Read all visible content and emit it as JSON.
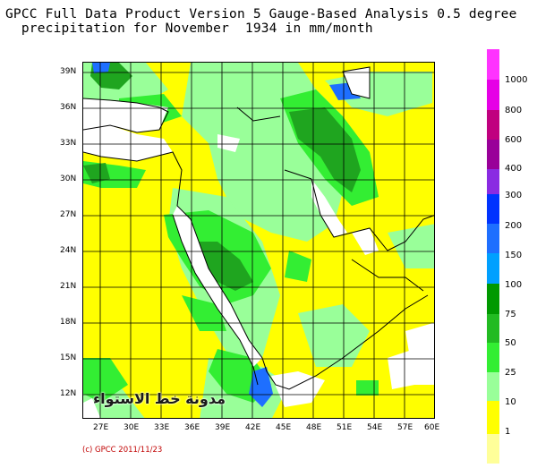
{
  "title": {
    "line1": "GPCC Full Data Product Version 5 Gauge-Based Analysis 0.5 degree",
    "line2": "  precipitation for November  1934 in mm/month"
  },
  "y_ticks": [
    "39N",
    "36N",
    "33N",
    "30N",
    "27N",
    "24N",
    "21N",
    "18N",
    "15N",
    "12N"
  ],
  "x_ticks": [
    "27E",
    "30E",
    "33E",
    "36E",
    "39E",
    "42E",
    "45E",
    "48E",
    "51E",
    "54E",
    "57E",
    "60E"
  ],
  "copyright": "(c) GPCC 2011/11/23",
  "watermark": "مدونة خط الاستواء",
  "legend": {
    "labels": [
      "1000",
      "800",
      "600",
      "400",
      "300",
      "200",
      "150",
      "100",
      "75",
      "50",
      "25",
      "10",
      "1"
    ],
    "colors": [
      "#ff33ff",
      "#e600e6",
      "#c0007f",
      "#990099",
      "#8a2be2",
      "#0033ff",
      "#1e6fff",
      "#00a0ff",
      "#009900",
      "#22bb22",
      "#33ee33",
      "#99ff99",
      "#ffff00",
      "#ffff99"
    ]
  },
  "chart_data": {
    "type": "heatmap",
    "title": "GPCC Full Data Product Version 5 Gauge-Based Analysis 0.5 degree precipitation for November 1934 in mm/month",
    "x_range_deg_E": [
      25,
      60
    ],
    "y_range_deg_N": [
      10,
      40
    ],
    "units": "mm/month",
    "colors": {
      "1-10": "#ffff00",
      "10-25": "#99ff99",
      "25-50": "#33ee33",
      "50-75": "#22bb22",
      "75-100": "#009900",
      "100-150": "#1e6fff",
      "no-data": "#ffffff"
    }
  }
}
